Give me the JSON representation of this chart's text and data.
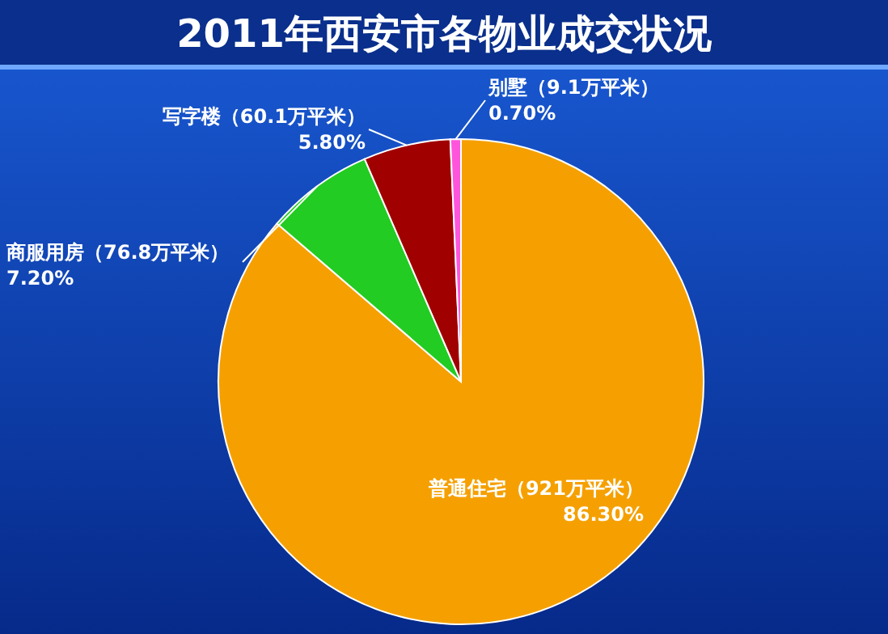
{
  "chart_data": {
    "type": "pie",
    "title": "2011年西安市各物业成交状况",
    "categories": [
      "普通住宅（921万平米）",
      "商服用房（76.8万平米）",
      "写字楼（60.1万平米）",
      "别墅（9.1万平米）"
    ],
    "values": [
      86.3,
      7.2,
      5.8,
      0.7
    ],
    "value_labels": [
      "86.30%",
      "7.20%",
      "5.80%",
      "0.70%"
    ],
    "colors": [
      "#f5a000",
      "#22cc22",
      "#a00000",
      "#ff55dd"
    ]
  }
}
